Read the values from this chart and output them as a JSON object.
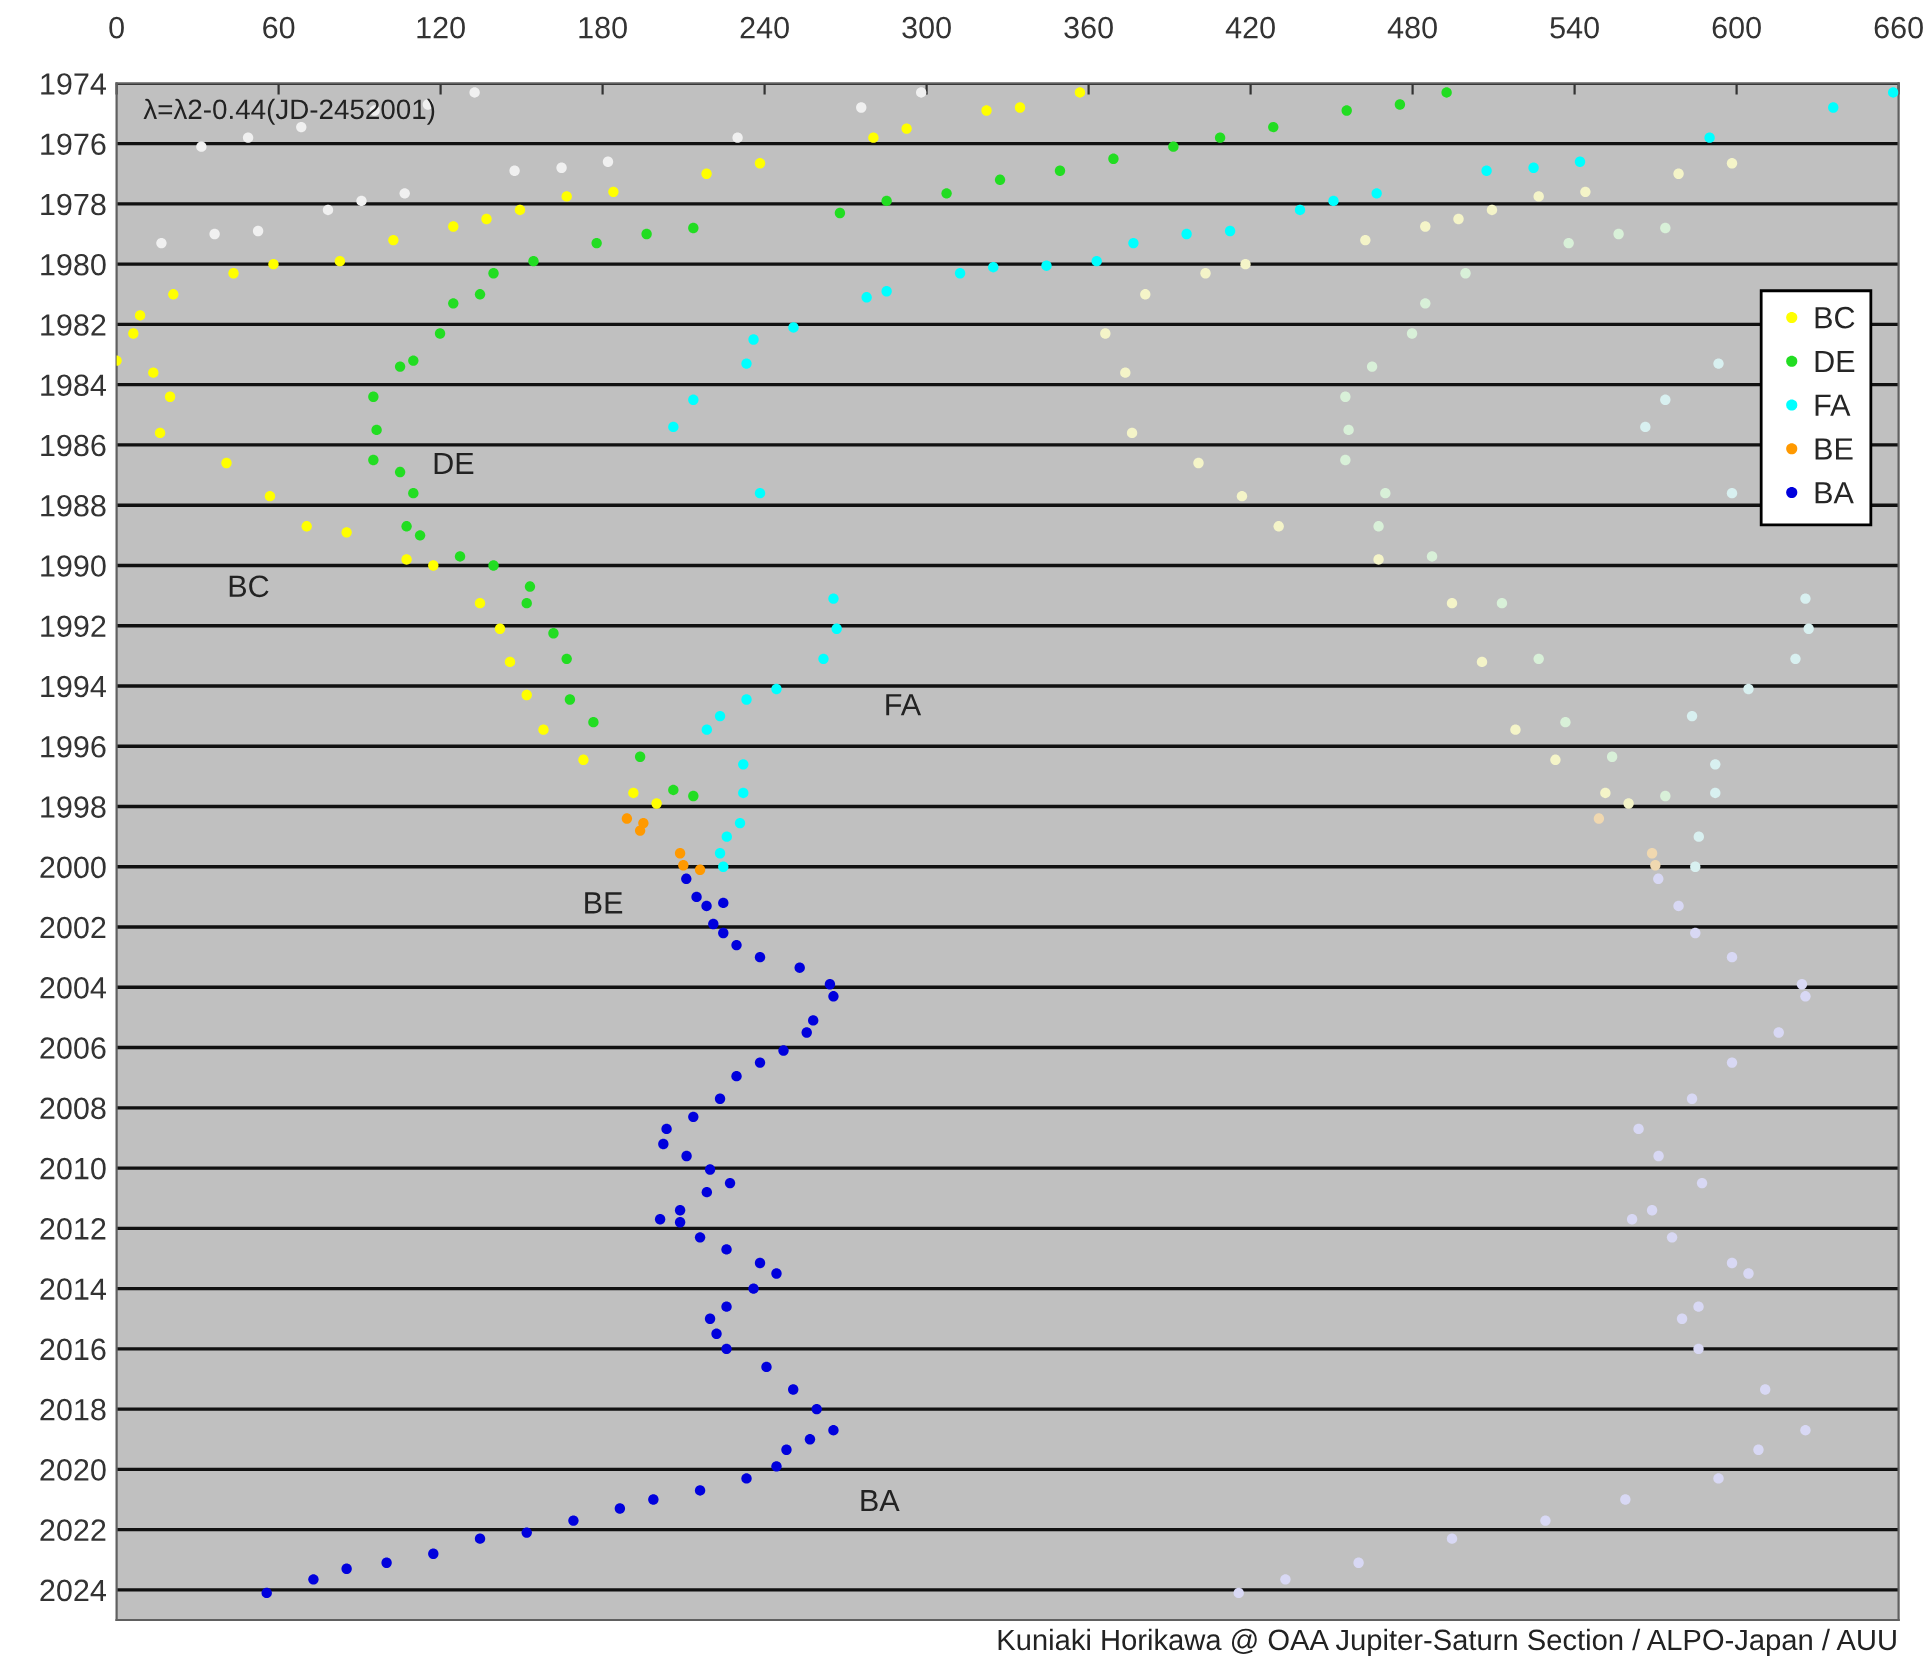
{
  "chart_data": {
    "type": "scatter",
    "xlim": [
      0,
      660
    ],
    "xticks": [
      0,
      60,
      120,
      180,
      240,
      300,
      360,
      420,
      480,
      540,
      600,
      660
    ],
    "ylim": [
      2025,
      1974
    ],
    "yticks": [
      1974,
      1976,
      1978,
      1980,
      1982,
      1984,
      1986,
      1988,
      1990,
      1992,
      1994,
      1996,
      1998,
      2000,
      2002,
      2004,
      2006,
      2008,
      2010,
      2012,
      2014,
      2016,
      2018,
      2020,
      2022,
      2024
    ],
    "grid": "y",
    "legend": "top right",
    "marker": "circle",
    "annotations": [
      "λ=λ2-0.44(JD-2452001)",
      "Kuniaki Horikawa @ OAA Jupiter-Saturn Section / ALPO-Japan / AUU",
      "DE",
      "BC",
      "FA",
      "BE",
      "BA"
    ],
    "series": [
      {
        "color": "#f4f4c8",
        "x": [
          381,
          366.2,
          373.6,
          376.1,
          400.7,
          416.8,
          430.4,
          467.4,
          494.6,
          505.7,
          518.1,
          532.9,
          551.4,
          560,
          509.4,
          526.7,
          544,
          578.5,
          598.3,
          462.5,
          484.7,
          497,
          403.3,
          418.1
        ],
        "values": [
          1981.0,
          1982.3,
          1983.6,
          1985.6,
          1986.6,
          1987.7,
          1988.7,
          1989.8,
          1991.25,
          1993.2,
          1995.45,
          1996.45,
          1997.55,
          1997.9,
          1978.2,
          1977.75,
          1977.6,
          1977.0,
          1976.65,
          1979.2,
          1978.75,
          1978.5,
          1980.3,
          1980.0
        ]
      },
      {
        "color": "#d8f0d8",
        "x": [
          499.6,
          484.7,
          479.8,
          465,
          455.1,
          456.3,
          455.1,
          469.9,
          467.4,
          487.2,
          513.1,
          526.7,
          536.6,
          553.9,
          573.6,
          537.8,
          556.3,
          573.6
        ],
        "values": [
          1980.3,
          1981.3,
          1982.3,
          1983.4,
          1984.4,
          1985.5,
          1986.5,
          1987.6,
          1988.7,
          1989.7,
          1991.25,
          1993.1,
          1995.2,
          1996.35,
          1997.65,
          1979.3,
          1979.0,
          1978.8
        ]
      },
      {
        "color": "#d8f0f0",
        "x": [
          593.3,
          573.6,
          566.2,
          598.3,
          625.5,
          626.7,
          621.8,
          604.4,
          583.5,
          592.1,
          592.1,
          586,
          584.7
        ],
        "values": [
          1983.3,
          1984.5,
          1985.4,
          1987.6,
          1991.1,
          1992.1,
          1993.1,
          1994.1,
          1995.0,
          1996.6,
          1997.55,
          1999.0,
          2000.0
        ]
      },
      {
        "color": "#f0d8b0",
        "x": [
          549,
          568.7,
          569.9
        ],
        "values": [
          1998.4,
          1999.55,
          1999.95
        ]
      },
      {
        "color": "#d8d8f4",
        "x": [
          571,
          578.5,
          584.7,
          598.3,
          624.2,
          625.5,
          615.6,
          598.3,
          583.5,
          563.7,
          571.1,
          587.2,
          568.7,
          561.3,
          576.1,
          598.3,
          604.4,
          585.9,
          579.8,
          585.9,
          610.6,
          625.5,
          608.1,
          593.3,
          558.8,
          529.2,
          494.6,
          460,
          432.9,
          415.6
        ],
        "values": [
          2000.4,
          2001.3,
          2002.2,
          2003.0,
          2003.9,
          2004.3,
          2005.5,
          2006.5,
          2007.7,
          2008.7,
          2009.6,
          2010.5,
          2011.4,
          2011.7,
          2012.3,
          2013.15,
          2013.5,
          2014.6,
          2015.0,
          2016.0,
          2017.35,
          2018.7,
          2019.35,
          2020.3,
          2021.0,
          2021.7,
          2022.3,
          2023.1,
          2023.65,
          2024.1
        ]
      },
      {
        "color": "#f0f0f0",
        "x": [
          16.6,
          36.3,
          52.4,
          78.3,
          90.7,
          106.7,
          147.4,
          164.8,
          182,
          31.4,
          48.7,
          68.4,
          95.6,
          115.3,
          132.6,
          230,
          275.8,
          298
        ],
        "values": [
          1979.3,
          1979.0,
          1978.9,
          1978.2,
          1977.9,
          1977.65,
          1976.9,
          1976.8,
          1976.6,
          1976.1,
          1975.8,
          1975.45,
          1974.9,
          1974.7,
          1974.3,
          1975.8,
          1974.8,
          1974.3
        ]
      },
      {
        "name": "BC",
        "color": "#ffff00",
        "x": [
          322.2,
          334.6,
          356.8,
          280.3,
          292.6,
          218.5,
          238.3,
          149.4,
          166.7,
          184,
          102.5,
          124.7,
          137,
          43.3,
          58.1,
          82.7,
          21,
          8.7,
          6.2,
          0,
          13.6,
          19.8,
          16.1,
          40.7,
          56.8,
          70.4,
          85.2,
          107.4,
          117.3,
          134.6,
          142,
          145.7,
          151.9,
          158.1,
          172.9,
          191.4,
          200
        ],
        "values": [
          1974.9,
          1974.8,
          1974.3,
          1975.8,
          1975.5,
          1977.0,
          1976.65,
          1978.2,
          1977.75,
          1977.6,
          1979.2,
          1978.75,
          1978.5,
          1980.3,
          1980.0,
          1979.9,
          1981.0,
          1981.7,
          1982.3,
          1983.2,
          1983.6,
          1984.4,
          1985.6,
          1986.6,
          1987.7,
          1988.7,
          1988.9,
          1989.8,
          1990.0,
          1991.25,
          1992.1,
          1993.2,
          1994.3,
          1995.45,
          1996.45,
          1997.55,
          1997.9
        ]
      },
      {
        "name": "DE",
        "color": "#22dd22",
        "x": [
          455.6,
          475.3,
          492.6,
          391.4,
          408.7,
          428.4,
          327.2,
          349.4,
          369.2,
          267.9,
          285.2,
          307.4,
          177.8,
          196.3,
          213.6,
          139.6,
          154.4,
          124.7,
          134.6,
          119.8,
          105,
          109.9,
          95.1,
          96.3,
          95.1,
          105,
          109.9,
          107.4,
          112.4,
          127.2,
          139.6,
          153.1,
          151.9,
          161.8,
          166.7,
          167.9,
          176.6,
          193.9,
          206.2,
          213.6
        ],
        "values": [
          1974.9,
          1974.7,
          1974.3,
          1976.1,
          1975.8,
          1975.45,
          1977.2,
          1976.9,
          1976.5,
          1978.3,
          1977.9,
          1977.65,
          1979.3,
          1979.0,
          1978.8,
          1980.3,
          1979.9,
          1981.3,
          1981.0,
          1982.3,
          1983.4,
          1983.2,
          1984.4,
          1985.5,
          1986.5,
          1986.9,
          1987.6,
          1988.7,
          1989.0,
          1989.7,
          1990.0,
          1990.7,
          1991.25,
          1992.25,
          1993.1,
          1994.45,
          1995.2,
          1996.35,
          1997.45,
          1997.65
        ]
      },
      {
        "name": "FA",
        "color": "#00ffff",
        "x": [
          635.8,
          658,
          590,
          507.4,
          524.8,
          542,
          438.3,
          450.7,
          466.7,
          376.6,
          396.3,
          412.4,
          312.4,
          324.7,
          344.4,
          363,
          277.8,
          285.2,
          250.7,
          235.9,
          233.3,
          213.6,
          206.2,
          238.3,
          265.5,
          266.7,
          261.8,
          244.4,
          233.3,
          223.5,
          218.6,
          232.1,
          232.1,
          230.9,
          226,
          223.5,
          224.7
        ],
        "values": [
          1974.8,
          1974.3,
          1975.8,
          1976.9,
          1976.8,
          1976.6,
          1978.2,
          1977.9,
          1977.65,
          1979.3,
          1979.0,
          1978.9,
          1980.3,
          1980.1,
          1980.05,
          1979.9,
          1981.1,
          1980.9,
          1982.1,
          1982.5,
          1983.3,
          1984.5,
          1985.4,
          1987.6,
          1991.1,
          1992.1,
          1993.1,
          1994.1,
          1994.45,
          1995.0,
          1995.45,
          1996.6,
          1997.55,
          1998.55,
          1999.0,
          1999.55,
          2000.0
        ]
      },
      {
        "name": "BE",
        "color": "#ff9900",
        "x": [
          189,
          193.9,
          195.1,
          208.7,
          209.9,
          216.1
        ],
        "values": [
          1998.4,
          1998.8,
          1998.55,
          1999.55,
          1999.95,
          2000.1
        ]
      },
      {
        "name": "BA",
        "color": "#0000dd",
        "x": [
          211,
          214.8,
          218.5,
          224.7,
          221,
          224.7,
          229.6,
          238.3,
          253,
          264.2,
          265.5,
          258,
          255.6,
          247,
          238.3,
          229.6,
          223.5,
          213.6,
          203.7,
          202.5,
          211.1,
          219.8,
          227.2,
          218.6,
          208.7,
          201.3,
          208.7,
          216.1,
          225.9,
          238.3,
          244.4,
          235.9,
          225.9,
          219.8,
          222.2,
          225.9,
          240.7,
          250.6,
          259.3,
          265.5,
          256.8,
          248.1,
          244.4,
          233.3,
          216.1,
          198.8,
          186.4,
          169.2,
          151.9,
          134.6,
          117.3,
          100,
          85.2,
          72.9,
          55.6
        ],
        "values": [
          2000.4,
          2001.0,
          2001.3,
          2001.2,
          2001.9,
          2002.2,
          2002.6,
          2003.0,
          2003.35,
          2003.9,
          2004.3,
          2005.1,
          2005.5,
          2006.1,
          2006.5,
          2006.95,
          2007.7,
          2008.3,
          2008.7,
          2009.2,
          2009.6,
          2010.05,
          2010.5,
          2010.8,
          2011.4,
          2011.7,
          2011.8,
          2012.3,
          2012.7,
          2013.15,
          2013.5,
          2014.0,
          2014.6,
          2015.0,
          2015.5,
          2016.0,
          2016.6,
          2017.35,
          2018.0,
          2018.7,
          2019.0,
          2019.35,
          2019.9,
          2020.3,
          2020.7,
          2021.0,
          2021.3,
          2021.7,
          2022.1,
          2022.3,
          2022.8,
          2023.1,
          2023.3,
          2023.65,
          2024.1
        ]
      }
    ]
  }
}
